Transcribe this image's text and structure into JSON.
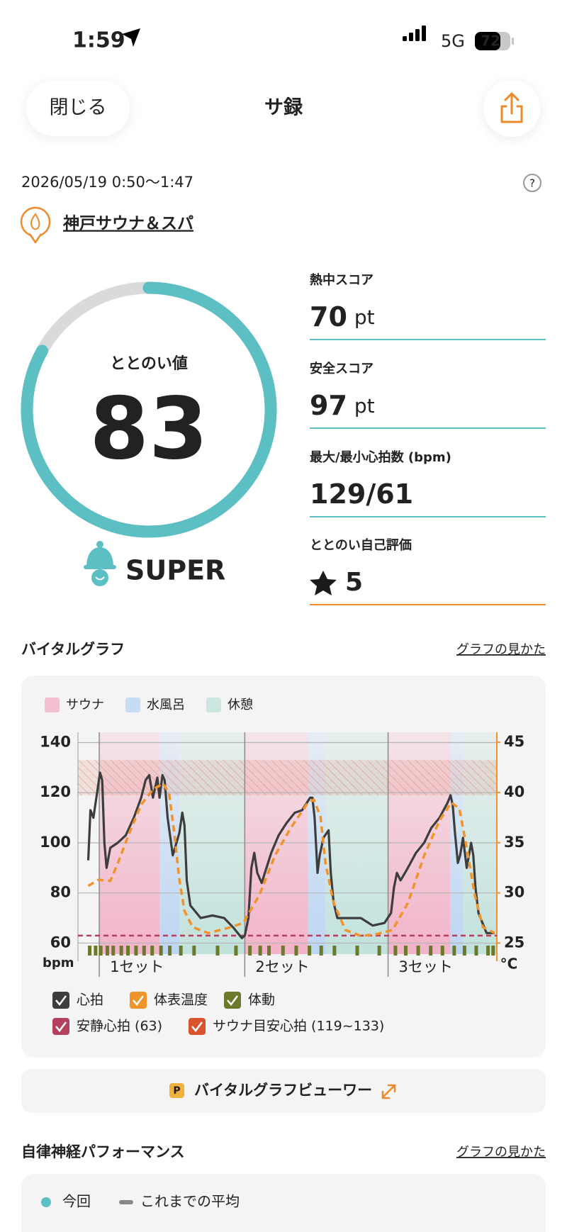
{
  "status_bar": {
    "time": "1:59",
    "network": "5G",
    "battery": 72
  },
  "header": {
    "close": "閉じる",
    "title": "サ録"
  },
  "session": {
    "datetime": "2026/05/19 0:50〜1:47",
    "facility": "神戸サウナ＆スパ"
  },
  "totonoi": {
    "label": "ととのい値",
    "value": 83,
    "range": [
      0,
      100
    ],
    "rank": "SUPER"
  },
  "stats": [
    {
      "label": "熱中スコア",
      "value": 70,
      "unit": "pt"
    },
    {
      "label": "安全スコア",
      "value": 97,
      "unit": "pt"
    },
    {
      "label": "最大/最小心拍数 (bpm)",
      "value": "129/61"
    },
    {
      "label": "ととのい自己評価",
      "value": 5
    }
  ],
  "vital_section": {
    "title": "バイタルグラフ",
    "link": "グラフの見かた",
    "viewer": "バイタルグラフビューワー"
  },
  "chart_data": {
    "type": "line",
    "zones": [
      {
        "name": "サウナ",
        "color": "#f2b3c8",
        "intervals": [
          [
            2.9,
            11.1
          ],
          [
            22.7,
            31.3
          ],
          [
            42.2,
            50.7
          ]
        ]
      },
      {
        "name": "水風呂",
        "color": "#bcd6f3",
        "intervals": [
          [
            11.1,
            13.8
          ],
          [
            31.3,
            33.7
          ],
          [
            50.7,
            52.4
          ]
        ]
      },
      {
        "name": "休憩",
        "color": "#c2e2dc",
        "intervals": [
          [
            13.8,
            22.7
          ],
          [
            33.7,
            42.2
          ],
          [
            52.4,
            57
          ]
        ]
      }
    ],
    "categories": [
      "1セット",
      "2セット",
      "3セット"
    ],
    "xlim": [
      0,
      57
    ],
    "ylim": [
      55.6,
      144.1
    ],
    "yticks": [
      60,
      80,
      100,
      120,
      140
    ],
    "ylabel": "bpm",
    "y2lim": [
      23.9,
      46
    ],
    "y2ticks": [
      25,
      30,
      35,
      40,
      45
    ],
    "y2label": "°C",
    "series": [
      {
        "name": "心拍",
        "color": "#3d3d3d",
        "x": [
          1.4,
          1.7,
          2.1,
          2.6,
          3.0,
          3.3,
          3.6,
          3.9,
          4.4,
          5.4,
          6.5,
          7.6,
          8.6,
          9.2,
          9.7,
          10.2,
          10.8,
          11.1,
          11.5,
          11.8,
          12.2,
          12.9,
          13.8,
          14.2,
          14.5,
          14.8,
          15.3,
          16.7,
          18.3,
          19.9,
          21.2,
          22.3,
          22.7,
          23.2,
          23.6,
          24.0,
          24.4,
          25.0,
          26.3,
          27.3,
          28.4,
          29.5,
          30.5,
          31.6,
          31.9,
          32.2,
          32.6,
          32.9,
          33.4,
          34.1,
          34.4,
          34.8,
          35.3,
          36.9,
          38.5,
          40.1,
          41.7,
          42.6,
          43.0,
          43.4,
          43.9,
          44.9,
          46.0,
          47.1,
          48.1,
          49.2,
          50.3,
          50.7,
          51.0,
          51.3,
          51.7,
          52.0,
          52.4,
          52.9,
          53.5,
          53.8,
          54.1,
          54.5,
          55.6,
          56.7
        ],
        "values": [
          93,
          113,
          110,
          120,
          128,
          125,
          100,
          90,
          98,
          100,
          103,
          110,
          118,
          125,
          127,
          118,
          126,
          118,
          127,
          125,
          110,
          95,
          104,
          112,
          107,
          85,
          75,
          70,
          71,
          70,
          66,
          62,
          63,
          70,
          90,
          96,
          88,
          84,
          96,
          103,
          108,
          112,
          113,
          118,
          118,
          110,
          88,
          95,
          102,
          105,
          88,
          76,
          70,
          70,
          70,
          67,
          68,
          72,
          82,
          88,
          85,
          90,
          96,
          100,
          106,
          110,
          116,
          119,
          115,
          104,
          92,
          95,
          102,
          90,
          100,
          95,
          82,
          72,
          64,
          64
        ]
      },
      {
        "name": "体表温度",
        "color": "#f0932b",
        "axis": "y2",
        "dashed": true,
        "x": [
          1.4,
          2.8,
          4.4,
          5.4,
          7.0,
          8.6,
          10.2,
          11.6,
          12.4,
          13.1,
          13.8,
          14.5,
          15.6,
          17.7,
          20.4,
          22.5,
          24.7,
          26.8,
          28.9,
          31.1,
          32.1,
          33.0,
          33.7,
          34.8,
          36.4,
          38.5,
          40.7,
          42.8,
          44.9,
          47.1,
          49.2,
          50.8,
          51.9,
          52.9,
          54.0,
          55.1,
          56.7
        ],
        "values": [
          30.7,
          31.3,
          31.2,
          32.9,
          36,
          38.8,
          40.3,
          40.9,
          39.9,
          36,
          31.3,
          28.2,
          26.6,
          26,
          26.5,
          27,
          29.8,
          33.7,
          36.4,
          38.8,
          39.3,
          37.6,
          32.9,
          29,
          26.3,
          25.7,
          25.9,
          26.3,
          29,
          33.7,
          37.2,
          39,
          38.4,
          34.5,
          29.8,
          26.6,
          26
        ]
      },
      {
        "name": "体動",
        "color": "#6b7a2a",
        "x": [
          1.6,
          2.4,
          3.1,
          4.0,
          4.8,
          5.9,
          6.8,
          7.9,
          9.0,
          10.1,
          11.3,
          12.5,
          14.0,
          15.8,
          19.0,
          21.5,
          23.4,
          24.8,
          26.0,
          27.9,
          29.7,
          31.5,
          33.1,
          34.9,
          38.0,
          41.0,
          43.2,
          44.6,
          46.3,
          48.0,
          49.6,
          51.2,
          52.6,
          54.2,
          55.8,
          56.5
        ]
      }
    ],
    "reference_lines": [
      {
        "name": "安静心拍 (63)",
        "color": "#b5405c",
        "value": 63
      }
    ],
    "bands": [
      {
        "name": "サウナ目安心拍 (119~133)",
        "color": "#d9532f",
        "range": [
          119,
          133
        ]
      }
    ]
  },
  "autonomic_section": {
    "title": "自律神経パフォーマンス",
    "link": "グラフの見かた",
    "legend": [
      "今回",
      "これまでの平均"
    ]
  }
}
